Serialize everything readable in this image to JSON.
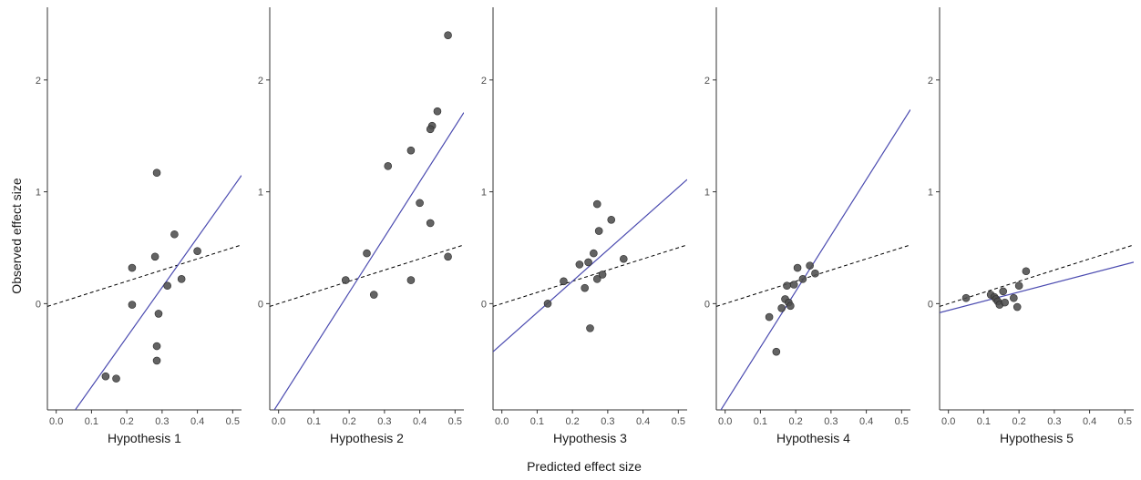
{
  "chart_data": {
    "type": "scatter",
    "ylabel": "Observed effect size",
    "xlabel": "Predicted effect size",
    "xlim": [
      -0.025,
      0.525
    ],
    "ylim": [
      -0.95,
      2.65
    ],
    "x_ticks": [
      0.0,
      0.1,
      0.2,
      0.3,
      0.4,
      0.5
    ],
    "x_tick_labels": [
      "0.0",
      "0.1",
      "0.2",
      "0.3",
      "0.4",
      "0.5"
    ],
    "y_ticks": [
      0,
      1,
      2
    ],
    "y_tick_labels": [
      "0",
      "1",
      "2"
    ],
    "grid": false,
    "colors": {
      "points": "#4d4d4d",
      "fit_line": "#4b4bb0",
      "reference_line": "#000000",
      "axis": "#333333"
    },
    "reference_line": {
      "style": "dashed",
      "slope": 1,
      "intercept": 0
    },
    "panels": [
      {
        "label": "Hypothesis 1",
        "fit_line": {
          "slope": 4.45,
          "intercept": -1.19
        },
        "points": [
          {
            "x": 0.285,
            "y": 1.17
          },
          {
            "x": 0.335,
            "y": 0.62
          },
          {
            "x": 0.4,
            "y": 0.47
          },
          {
            "x": 0.28,
            "y": 0.42
          },
          {
            "x": 0.215,
            "y": 0.32
          },
          {
            "x": 0.355,
            "y": 0.22
          },
          {
            "x": 0.315,
            "y": 0.16
          },
          {
            "x": 0.215,
            "y": -0.01
          },
          {
            "x": 0.29,
            "y": -0.09
          },
          {
            "x": 0.285,
            "y": -0.38
          },
          {
            "x": 0.285,
            "y": -0.51
          },
          {
            "x": 0.14,
            "y": -0.65
          },
          {
            "x": 0.17,
            "y": -0.67
          }
        ]
      },
      {
        "label": "Hypothesis 2",
        "fit_line": {
          "slope": 4.95,
          "intercept": -0.89
        },
        "points": [
          {
            "x": 0.48,
            "y": 2.4
          },
          {
            "x": 0.45,
            "y": 1.72
          },
          {
            "x": 0.435,
            "y": 1.59
          },
          {
            "x": 0.43,
            "y": 1.56
          },
          {
            "x": 0.375,
            "y": 1.37
          },
          {
            "x": 0.31,
            "y": 1.23
          },
          {
            "x": 0.4,
            "y": 0.9
          },
          {
            "x": 0.43,
            "y": 0.72
          },
          {
            "x": 0.25,
            "y": 0.45
          },
          {
            "x": 0.48,
            "y": 0.42
          },
          {
            "x": 0.19,
            "y": 0.21
          },
          {
            "x": 0.375,
            "y": 0.21
          },
          {
            "x": 0.27,
            "y": 0.08
          }
        ]
      },
      {
        "label": "Hypothesis 3",
        "fit_line": {
          "slope": 2.8,
          "intercept": -0.36
        },
        "points": [
          {
            "x": 0.27,
            "y": 0.89
          },
          {
            "x": 0.31,
            "y": 0.75
          },
          {
            "x": 0.275,
            "y": 0.65
          },
          {
            "x": 0.26,
            "y": 0.45
          },
          {
            "x": 0.345,
            "y": 0.4
          },
          {
            "x": 0.245,
            "y": 0.37
          },
          {
            "x": 0.22,
            "y": 0.35
          },
          {
            "x": 0.285,
            "y": 0.26
          },
          {
            "x": 0.27,
            "y": 0.22
          },
          {
            "x": 0.175,
            "y": 0.2
          },
          {
            "x": 0.235,
            "y": 0.14
          },
          {
            "x": 0.13,
            "y": 0.0
          },
          {
            "x": 0.25,
            "y": -0.22
          }
        ]
      },
      {
        "label": "Hypothesis 4",
        "fit_line": {
          "slope": 5.0,
          "intercept": -0.89
        },
        "points": [
          {
            "x": 0.24,
            "y": 0.34
          },
          {
            "x": 0.205,
            "y": 0.32
          },
          {
            "x": 0.255,
            "y": 0.27
          },
          {
            "x": 0.22,
            "y": 0.22
          },
          {
            "x": 0.195,
            "y": 0.17
          },
          {
            "x": 0.175,
            "y": 0.16
          },
          {
            "x": 0.17,
            "y": 0.04
          },
          {
            "x": 0.18,
            "y": 0.01
          },
          {
            "x": 0.185,
            "y": -0.02
          },
          {
            "x": 0.16,
            "y": -0.04
          },
          {
            "x": 0.125,
            "y": -0.12
          },
          {
            "x": 0.145,
            "y": -0.43
          }
        ]
      },
      {
        "label": "Hypothesis 5",
        "fit_line": {
          "slope": 0.82,
          "intercept": -0.06
        },
        "points": [
          {
            "x": 0.05,
            "y": 0.05
          },
          {
            "x": 0.12,
            "y": 0.08
          },
          {
            "x": 0.13,
            "y": 0.06
          },
          {
            "x": 0.135,
            "y": 0.04
          },
          {
            "x": 0.14,
            "y": 0.02
          },
          {
            "x": 0.145,
            "y": -0.01
          },
          {
            "x": 0.155,
            "y": 0.11
          },
          {
            "x": 0.16,
            "y": 0.01
          },
          {
            "x": 0.185,
            "y": 0.05
          },
          {
            "x": 0.195,
            "y": -0.03
          },
          {
            "x": 0.2,
            "y": 0.16
          },
          {
            "x": 0.22,
            "y": 0.29
          }
        ]
      }
    ]
  }
}
